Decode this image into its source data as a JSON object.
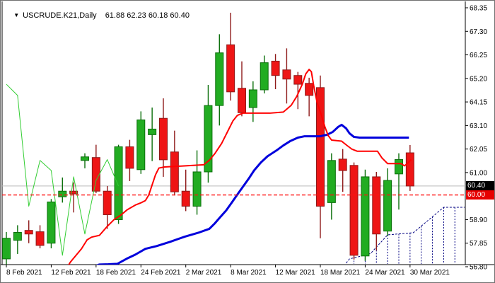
{
  "window": {
    "app": "trading-chart",
    "title_marker": "▼",
    "symbol_period": "USCRUDE.K21,Daily",
    "ohlc_readout": "61.88 62.23 60.18 60.40"
  },
  "price_scale": {
    "last_price_label": "60.40",
    "level_line_label": "60.00"
  },
  "chart_data": {
    "type": "candlestick",
    "title": "USCRUDE.K21,Daily",
    "ylim": [
      56.8,
      68.35
    ],
    "grid": false,
    "price_ticks": [
      68.35,
      67.3,
      66.25,
      65.2,
      64.15,
      63.1,
      62.05,
      61.0,
      58.9,
      57.85,
      56.8
    ],
    "date_ticks": [
      {
        "index": 0,
        "label": "8 Feb 2021"
      },
      {
        "index": 4,
        "label": "12 Feb 2021"
      },
      {
        "index": 8,
        "label": "18 Feb 2021"
      },
      {
        "index": 12,
        "label": "24 Feb 2021"
      },
      {
        "index": 16,
        "label": "2 Mar 2021"
      },
      {
        "index": 20,
        "label": "8 Mar 2021"
      },
      {
        "index": 24,
        "label": "12 Mar 2021"
      },
      {
        "index": 28,
        "label": "18 Mar 2021"
      },
      {
        "index": 32,
        "label": "24 Mar 2021"
      },
      {
        "index": 36,
        "label": "30 Mar 2021"
      }
    ],
    "candles": [
      {
        "date": "8 Feb 2021",
        "o": 57.15,
        "h": 58.35,
        "l": 56.9,
        "c": 58.07
      },
      {
        "date": "9 Feb 2021",
        "o": 57.98,
        "h": 58.65,
        "l": 57.37,
        "c": 58.33
      },
      {
        "date": "10 Feb 2021",
        "o": 58.42,
        "h": 58.87,
        "l": 57.85,
        "c": 58.26
      },
      {
        "date": "11 Feb 2021",
        "o": 58.36,
        "h": 58.65,
        "l": 57.62,
        "c": 57.75
      },
      {
        "date": "12 Feb 2021",
        "o": 57.85,
        "h": 59.82,
        "l": 57.62,
        "c": 59.69
      },
      {
        "date": "15 Feb 2021",
        "o": 59.92,
        "h": 60.78,
        "l": 59.66,
        "c": 60.17
      },
      {
        "date": "16 Feb 2021",
        "o": 60.17,
        "h": 60.56,
        "l": 59.22,
        "c": 60.05
      },
      {
        "date": "17 Feb 2021",
        "o": 61.54,
        "h": 61.86,
        "l": 61.19,
        "c": 61.7
      },
      {
        "date": "18 Feb 2021",
        "o": 61.67,
        "h": 62.24,
        "l": 60.08,
        "c": 60.17
      },
      {
        "date": "19 Feb 2021",
        "o": 60.17,
        "h": 60.4,
        "l": 58.49,
        "c": 59.12
      },
      {
        "date": "22 Feb 2021",
        "o": 58.9,
        "h": 62.24,
        "l": 58.71,
        "c": 62.15
      },
      {
        "date": "23 Feb 2021",
        "o": 62.15,
        "h": 62.46,
        "l": 60.62,
        "c": 61.19
      },
      {
        "date": "24 Feb 2021",
        "o": 61.13,
        "h": 63.73,
        "l": 60.94,
        "c": 63.35
      },
      {
        "date": "25 Feb 2021",
        "o": 62.69,
        "h": 63.9,
        "l": 61.51,
        "c": 62.94
      },
      {
        "date": "26 Feb 2021",
        "o": 63.42,
        "h": 64.31,
        "l": 60.81,
        "c": 61.57
      },
      {
        "date": "1 Mar 2021",
        "o": 61.92,
        "h": 62.87,
        "l": 59.98,
        "c": 60.14
      },
      {
        "date": "2 Mar 2021",
        "o": 60.17,
        "h": 61.13,
        "l": 59.28,
        "c": 59.5
      },
      {
        "date": "3 Mar 2021",
        "o": 59.5,
        "h": 61.99,
        "l": 59.12,
        "c": 61.03
      },
      {
        "date": "4 Mar 2021",
        "o": 61.03,
        "h": 64.91,
        "l": 60.55,
        "c": 63.99
      },
      {
        "date": "5 Mar 2021",
        "o": 63.99,
        "h": 67.17,
        "l": 63.1,
        "c": 66.34
      },
      {
        "date": "8 Mar 2021",
        "o": 66.7,
        "h": 68.13,
        "l": 64.21,
        "c": 64.6
      },
      {
        "date": "9 Mar 2021",
        "o": 64.76,
        "h": 65.96,
        "l": 63.51,
        "c": 63.67
      },
      {
        "date": "10 Mar 2021",
        "o": 63.9,
        "h": 65.07,
        "l": 63.26,
        "c": 64.69
      },
      {
        "date": "11 Mar 2021",
        "o": 64.69,
        "h": 66.22,
        "l": 64.53,
        "c": 65.9
      },
      {
        "date": "12 Mar 2021",
        "o": 65.97,
        "h": 66.29,
        "l": 64.72,
        "c": 65.33
      },
      {
        "date": "15 Mar 2021",
        "o": 65.58,
        "h": 66.54,
        "l": 64.08,
        "c": 65.17
      },
      {
        "date": "16 Mar 2021",
        "o": 65.33,
        "h": 65.49,
        "l": 63.83,
        "c": 64.94
      },
      {
        "date": "17 Mar 2021",
        "o": 64.98,
        "h": 65.23,
        "l": 63.51,
        "c": 64.44
      },
      {
        "date": "18 Mar 2021",
        "o": 64.79,
        "h": 65.33,
        "l": 58.07,
        "c": 59.5
      },
      {
        "date": "19 Mar 2021",
        "o": 59.66,
        "h": 61.86,
        "l": 58.9,
        "c": 61.54
      },
      {
        "date": "22 Mar 2021",
        "o": 61.6,
        "h": 62.05,
        "l": 60.14,
        "c": 61.09
      },
      {
        "date": "23 Mar 2021",
        "o": 61.32,
        "h": 61.45,
        "l": 57.12,
        "c": 57.31
      },
      {
        "date": "24 Mar 2021",
        "o": 57.28,
        "h": 61.13,
        "l": 57.06,
        "c": 60.81
      },
      {
        "date": "25 Mar 2021",
        "o": 60.81,
        "h": 61.03,
        "l": 57.53,
        "c": 58.26
      },
      {
        "date": "26 Mar 2021",
        "o": 58.39,
        "h": 61.19,
        "l": 58.17,
        "c": 60.65
      },
      {
        "date": "29 Mar 2021",
        "o": 60.94,
        "h": 61.86,
        "l": 59.35,
        "c": 61.58
      },
      {
        "date": "30 Mar 2021",
        "o": 61.88,
        "h": 62.23,
        "l": 60.18,
        "c": 60.4
      }
    ],
    "levels": {
      "last_price": {
        "value": 60.4,
        "color": "#b9b9b9",
        "style": "solid",
        "badge": "#000000"
      },
      "horizontal_line": {
        "value": 60.0,
        "color": "#ff1010",
        "style": "dashed",
        "badge": "#e60000"
      }
    },
    "indicators": {
      "tenkan_sen": {
        "name": "fast-line",
        "color": "#ff0000",
        "width": 2,
        "points": [
          [
            5.2,
            56.6
          ],
          [
            5.7,
            57.0
          ],
          [
            6.2,
            57.3
          ],
          [
            6.7,
            57.6
          ],
          [
            7.2,
            58.0
          ],
          [
            7.6,
            58.12
          ],
          [
            8.3,
            58.2
          ],
          [
            9.0,
            58.6
          ],
          [
            9.6,
            58.9
          ],
          [
            10.2,
            59.1
          ],
          [
            10.8,
            59.35
          ],
          [
            11.5,
            59.55
          ],
          [
            12.0,
            59.65
          ],
          [
            12.4,
            59.75
          ],
          [
            12.7,
            60.0
          ],
          [
            13.0,
            60.45
          ],
          [
            13.3,
            60.9
          ],
          [
            13.6,
            61.2
          ],
          [
            14.1,
            61.25
          ],
          [
            16.0,
            61.3
          ],
          [
            17.6,
            61.35
          ],
          [
            18.1,
            61.55
          ],
          [
            18.6,
            61.85
          ],
          [
            19.2,
            62.3
          ],
          [
            19.7,
            62.8
          ],
          [
            20.2,
            63.3
          ],
          [
            20.6,
            63.55
          ],
          [
            21.1,
            63.65
          ],
          [
            23.5,
            63.65
          ],
          [
            24.7,
            63.7
          ],
          [
            25.4,
            64.0
          ],
          [
            25.9,
            64.4
          ],
          [
            26.4,
            64.95
          ],
          [
            26.7,
            65.4
          ],
          [
            27.0,
            65.6
          ],
          [
            27.2,
            65.5
          ],
          [
            27.4,
            64.9
          ],
          [
            27.7,
            64.15
          ],
          [
            28.1,
            63.55
          ],
          [
            28.4,
            63.05
          ],
          [
            28.7,
            62.65
          ],
          [
            29.0,
            62.45
          ],
          [
            29.9,
            62.4
          ],
          [
            30.4,
            62.2
          ],
          [
            30.8,
            62.05
          ],
          [
            31.3,
            61.95
          ],
          [
            33.1,
            61.95
          ],
          [
            33.5,
            61.65
          ],
          [
            34.0,
            61.4
          ],
          [
            35.2,
            61.4
          ],
          [
            35.5,
            61.3
          ],
          [
            35.8,
            61.42
          ],
          [
            36.1,
            61.58
          ]
        ]
      },
      "kijun_sen": {
        "name": "slow-line",
        "color": "#0000dc",
        "width": 3,
        "points": [
          [
            6.9,
            56.6
          ],
          [
            7.4,
            56.74
          ],
          [
            8.3,
            56.9
          ],
          [
            9.1,
            56.91
          ],
          [
            9.9,
            56.93
          ],
          [
            10.7,
            57.15
          ],
          [
            11.5,
            57.34
          ],
          [
            12.4,
            57.6
          ],
          [
            13.4,
            57.72
          ],
          [
            14.6,
            57.91
          ],
          [
            15.9,
            58.14
          ],
          [
            17.2,
            58.33
          ],
          [
            18.1,
            58.49
          ],
          [
            18.6,
            58.74
          ],
          [
            19.1,
            59.03
          ],
          [
            19.6,
            59.31
          ],
          [
            20.1,
            59.66
          ],
          [
            20.6,
            60.02
          ],
          [
            21.1,
            60.37
          ],
          [
            21.6,
            60.72
          ],
          [
            22.1,
            61.1
          ],
          [
            22.7,
            61.45
          ],
          [
            23.3,
            61.73
          ],
          [
            24.1,
            61.99
          ],
          [
            24.7,
            62.21
          ],
          [
            25.3,
            62.4
          ],
          [
            26.0,
            62.56
          ],
          [
            26.6,
            62.62
          ],
          [
            28.0,
            62.62
          ],
          [
            28.6,
            62.69
          ],
          [
            29.1,
            62.81
          ],
          [
            29.6,
            63.04
          ],
          [
            29.9,
            63.13
          ],
          [
            30.3,
            62.97
          ],
          [
            30.6,
            62.75
          ],
          [
            31.0,
            62.59
          ],
          [
            31.5,
            62.56
          ],
          [
            35.9,
            62.56
          ]
        ]
      },
      "chikou_span": {
        "name": "lagging-close-line",
        "color": "#32cd32",
        "width": 1,
        "shift": -26,
        "note": "close price shifted back 26 bars; derived from candles"
      },
      "senkou_span_b": {
        "name": "future-cloud-boundary",
        "color": "#000080",
        "width": 1,
        "style": "dashed",
        "points": [
          [
            30.3,
            56.96
          ],
          [
            30.6,
            57.15
          ],
          [
            32.2,
            57.34
          ],
          [
            32.5,
            57.4
          ],
          [
            34.0,
            58.22
          ],
          [
            36.3,
            58.32
          ],
          [
            39.0,
            59.45
          ],
          [
            41.0,
            59.45
          ]
        ]
      },
      "cloud_hatch_indices": [
        31,
        32,
        33,
        34,
        35,
        36,
        37,
        38,
        39,
        40,
        40.9
      ]
    },
    "colors": {
      "bull_body": "#22ac22",
      "bull_border": "#0b6f0b",
      "bear_body": "#ee1515",
      "bear_border": "#8f1a1a",
      "frame": "#000000",
      "background": "#ffffff",
      "axis_text": "#000000"
    }
  }
}
